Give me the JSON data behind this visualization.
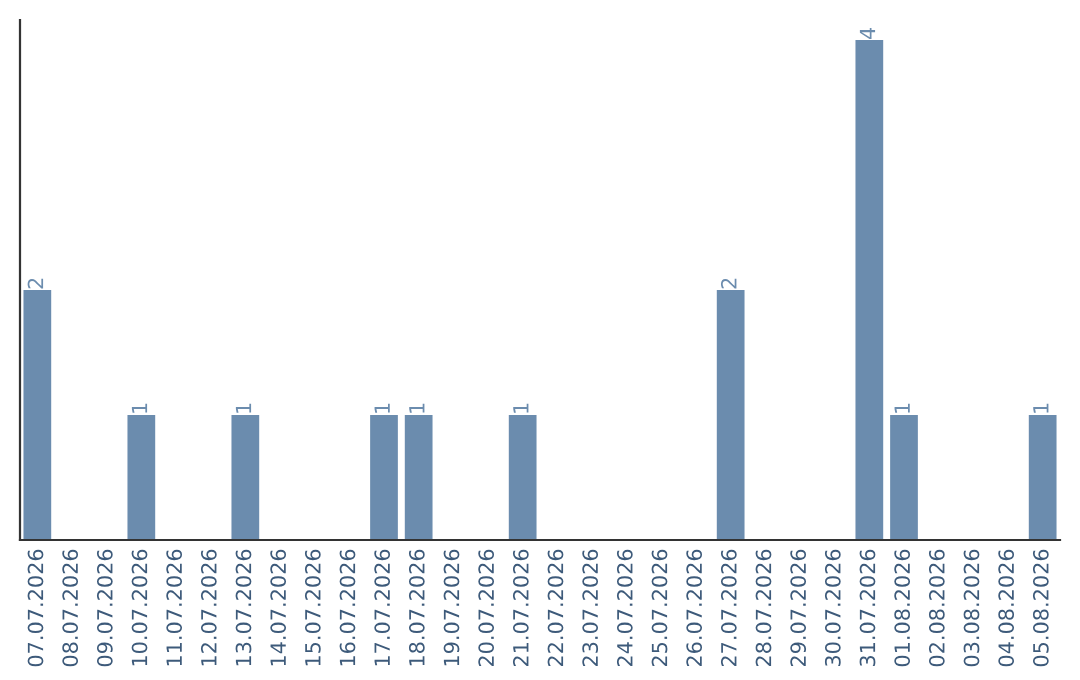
{
  "chart_data": {
    "type": "bar",
    "categories": [
      "07.07.2026",
      "08.07.2026",
      "09.07.2026",
      "10.07.2026",
      "11.07.2026",
      "12.07.2026",
      "13.07.2026",
      "14.07.2026",
      "15.07.2026",
      "16.07.2026",
      "17.07.2026",
      "18.07.2026",
      "19.07.2026",
      "20.07.2026",
      "21.07.2026",
      "22.07.2026",
      "23.07.2026",
      "24.07.2026",
      "25.07.2026",
      "26.07.2026",
      "27.07.2026",
      "28.07.2026",
      "29.07.2026",
      "30.07.2026",
      "31.07.2026",
      "01.08.2026",
      "02.08.2026",
      "03.08.2026",
      "04.08.2026",
      "05.08.2026"
    ],
    "values": [
      2,
      0,
      0,
      1,
      0,
      0,
      1,
      0,
      0,
      0,
      1,
      1,
      0,
      0,
      1,
      0,
      0,
      0,
      0,
      0,
      2,
      0,
      0,
      0,
      4,
      1,
      0,
      0,
      0,
      1
    ],
    "value_labels": [
      "2",
      null,
      null,
      "1",
      null,
      null,
      "1",
      null,
      null,
      null,
      "1",
      "1",
      null,
      null,
      "1",
      null,
      null,
      null,
      null,
      null,
      "2",
      null,
      null,
      null,
      "4",
      "1",
      null,
      null,
      null,
      "1"
    ],
    "color": "#6b8cae",
    "tick_labels": "x",
    "grid": false,
    "legend": false
  }
}
